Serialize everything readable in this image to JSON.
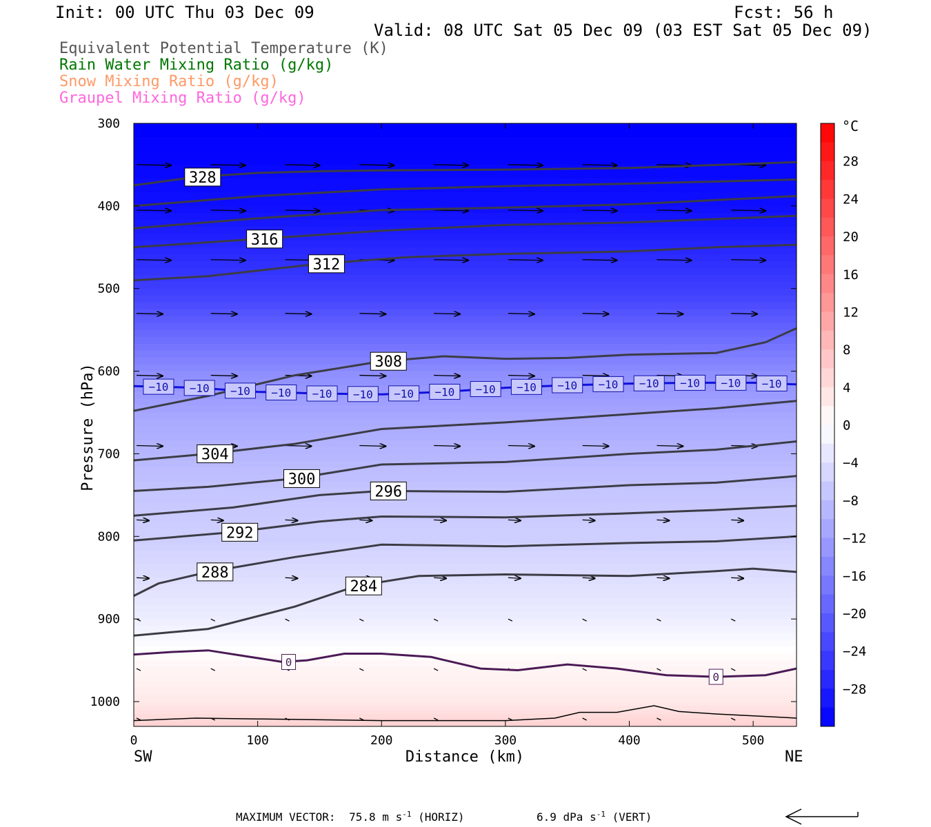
{
  "header": {
    "init": "Init: 00 UTC Thu 03 Dec 09",
    "fcst": "Fcst:   56 h",
    "valid": "Valid: 08 UTC Sat 05 Dec 09 (03 EST Sat 05 Dec 09)"
  },
  "fields": [
    {
      "label": "Equivalent Potential Temperature (K)",
      "color": "#555555"
    },
    {
      "label": "Rain Water Mixing Ratio (g/kg)",
      "color": "#007700"
    },
    {
      "label": "Snow Mixing Ratio (g/kg)",
      "color": "#ff9966"
    },
    {
      "label": "Graupel Mixing Ratio (g/kg)",
      "color": "#ff66dd"
    }
  ],
  "chart_data": {
    "type": "contour_cross_section",
    "xlabel": "Distance (km)",
    "ylabel": "Pressure (hPa)",
    "xlim": [
      0,
      535
    ],
    "ylim": [
      1030,
      300
    ],
    "x_ticks": [
      0,
      100,
      200,
      300,
      400,
      500
    ],
    "y_ticks": [
      300,
      400,
      500,
      600,
      700,
      800,
      900,
      1000
    ],
    "left_end_label": "SW",
    "right_end_label": "NE",
    "colorbar": {
      "unit": "°C",
      "tick_labels": [
        "28",
        "24",
        "20",
        "16",
        "12",
        "8",
        "4",
        "0",
        "−4",
        "−8",
        "−12",
        "−16",
        "−20",
        "−24",
        "−28"
      ]
    },
    "theta_e_contours": [
      {
        "value": 328,
        "label": "328",
        "points": [
          [
            0,
            375
          ],
          [
            50,
            365
          ],
          [
            100,
            360
          ],
          [
            150,
            358
          ],
          [
            200,
            357
          ],
          [
            300,
            356
          ],
          [
            400,
            354
          ],
          [
            535,
            347
          ]
        ]
      },
      {
        "value": 324,
        "label": "",
        "points": [
          [
            0,
            400
          ],
          [
            100,
            388
          ],
          [
            200,
            380
          ],
          [
            300,
            376
          ],
          [
            400,
            373
          ],
          [
            535,
            368
          ]
        ]
      },
      {
        "value": 320,
        "label": "",
        "points": [
          [
            0,
            427
          ],
          [
            100,
            415
          ],
          [
            200,
            405
          ],
          [
            300,
            402
          ],
          [
            400,
            398
          ],
          [
            535,
            388
          ]
        ]
      },
      {
        "value": 316,
        "label": "316",
        "points": [
          [
            0,
            450
          ],
          [
            100,
            440
          ],
          [
            200,
            430
          ],
          [
            300,
            423
          ],
          [
            400,
            420
          ],
          [
            535,
            412
          ]
        ]
      },
      {
        "value": 312,
        "label": "312",
        "points": [
          [
            0,
            490
          ],
          [
            60,
            485
          ],
          [
            150,
            470
          ],
          [
            220,
            462
          ],
          [
            300,
            458
          ],
          [
            400,
            455
          ],
          [
            470,
            450
          ],
          [
            535,
            447
          ]
        ]
      },
      {
        "value": 308,
        "label": "308",
        "points": [
          [
            0,
            648
          ],
          [
            60,
            630
          ],
          [
            130,
            605
          ],
          [
            200,
            588
          ],
          [
            250,
            582
          ],
          [
            300,
            585
          ],
          [
            350,
            584
          ],
          [
            400,
            580
          ],
          [
            470,
            578
          ],
          [
            510,
            565
          ],
          [
            535,
            548
          ]
        ]
      },
      {
        "value": 304,
        "label": "304",
        "points": [
          [
            0,
            708
          ],
          [
            60,
            700
          ],
          [
            130,
            688
          ],
          [
            200,
            670
          ],
          [
            300,
            662
          ],
          [
            400,
            652
          ],
          [
            470,
            645
          ],
          [
            535,
            636
          ]
        ]
      },
      {
        "value": 300,
        "label": "300",
        "points": [
          [
            0,
            745
          ],
          [
            60,
            740
          ],
          [
            130,
            730
          ],
          [
            200,
            713
          ],
          [
            300,
            710
          ],
          [
            400,
            700
          ],
          [
            470,
            695
          ],
          [
            535,
            685
          ]
        ]
      },
      {
        "value": 296,
        "label": "296",
        "points": [
          [
            0,
            775
          ],
          [
            80,
            765
          ],
          [
            150,
            750
          ],
          [
            200,
            745
          ],
          [
            300,
            746
          ],
          [
            400,
            738
          ],
          [
            470,
            735
          ],
          [
            535,
            727
          ]
        ]
      },
      {
        "value": 292,
        "label": "292",
        "points": [
          [
            0,
            805
          ],
          [
            80,
            795
          ],
          [
            150,
            782
          ],
          [
            200,
            776
          ],
          [
            300,
            777
          ],
          [
            400,
            772
          ],
          [
            470,
            768
          ],
          [
            535,
            763
          ]
        ]
      },
      {
        "value": 288,
        "label": "288",
        "points": [
          [
            0,
            872
          ],
          [
            20,
            857
          ],
          [
            60,
            843
          ],
          [
            130,
            825
          ],
          [
            200,
            810
          ],
          [
            300,
            812
          ],
          [
            400,
            808
          ],
          [
            470,
            806
          ],
          [
            535,
            800
          ]
        ]
      },
      {
        "value": 284,
        "label": "284",
        "points": [
          [
            0,
            920
          ],
          [
            60,
            912
          ],
          [
            130,
            885
          ],
          [
            180,
            860
          ],
          [
            230,
            848
          ],
          [
            300,
            846
          ],
          [
            400,
            848
          ],
          [
            470,
            842
          ],
          [
            500,
            839
          ],
          [
            535,
            843
          ]
        ]
      }
    ],
    "zero_isotherm": {
      "label": "0",
      "points": [
        [
          0,
          943
        ],
        [
          30,
          940
        ],
        [
          60,
          938
        ],
        [
          90,
          945
        ],
        [
          120,
          952
        ],
        [
          140,
          950
        ],
        [
          170,
          942
        ],
        [
          200,
          942
        ],
        [
          240,
          946
        ],
        [
          280,
          960
        ],
        [
          310,
          962
        ],
        [
          350,
          955
        ],
        [
          390,
          960
        ],
        [
          430,
          968
        ],
        [
          470,
          970
        ],
        [
          510,
          968
        ],
        [
          535,
          960
        ]
      ]
    },
    "minus10_isotherm": {
      "label": "−10",
      "points": [
        [
          0,
          618
        ],
        [
          50,
          620
        ],
        [
          100,
          625
        ],
        [
          150,
          627
        ],
        [
          200,
          628
        ],
        [
          250,
          625
        ],
        [
          300,
          620
        ],
        [
          350,
          617
        ],
        [
          400,
          615
        ],
        [
          450,
          614
        ],
        [
          500,
          614
        ],
        [
          535,
          616
        ]
      ]
    },
    "ground_level": {
      "points": [
        [
          0,
          1023
        ],
        [
          50,
          1020
        ],
        [
          100,
          1021
        ],
        [
          150,
          1022
        ],
        [
          200,
          1023
        ],
        [
          250,
          1023
        ],
        [
          300,
          1023
        ],
        [
          340,
          1020
        ],
        [
          360,
          1013
        ],
        [
          390,
          1013
        ],
        [
          420,
          1005
        ],
        [
          440,
          1012
        ],
        [
          470,
          1015
        ],
        [
          510,
          1018
        ],
        [
          535,
          1020
        ]
      ]
    },
    "temperature_bands": [
      {
        "p": 300,
        "t": -32
      },
      {
        "p": 400,
        "t": -30
      },
      {
        "p": 450,
        "t": -27
      },
      {
        "p": 500,
        "t": -24
      },
      {
        "p": 550,
        "t": -19
      },
      {
        "p": 600,
        "t": -14
      },
      {
        "p": 650,
        "t": -11
      },
      {
        "p": 700,
        "t": -9
      },
      {
        "p": 750,
        "t": -7
      },
      {
        "p": 800,
        "t": -6
      },
      {
        "p": 850,
        "t": -4
      },
      {
        "p": 900,
        "t": -2
      },
      {
        "p": 950,
        "t": 1
      },
      {
        "p": 1000,
        "t": 3
      },
      {
        "p": 1030,
        "t": 6
      }
    ],
    "wind_vector_levels": [
      350,
      405,
      465,
      530,
      605,
      690,
      780,
      850,
      900,
      960,
      1020
    ],
    "footer": {
      "max_vector_label": "MAXIMUM VECTOR:",
      "horiz_value": "75.8 m s",
      "horiz_exp": "-1",
      "horiz_suffix": " (HORIZ)",
      "vert_value": "6.9 dPa s",
      "vert_exp": "-1",
      "vert_suffix": " (VERT)"
    }
  }
}
